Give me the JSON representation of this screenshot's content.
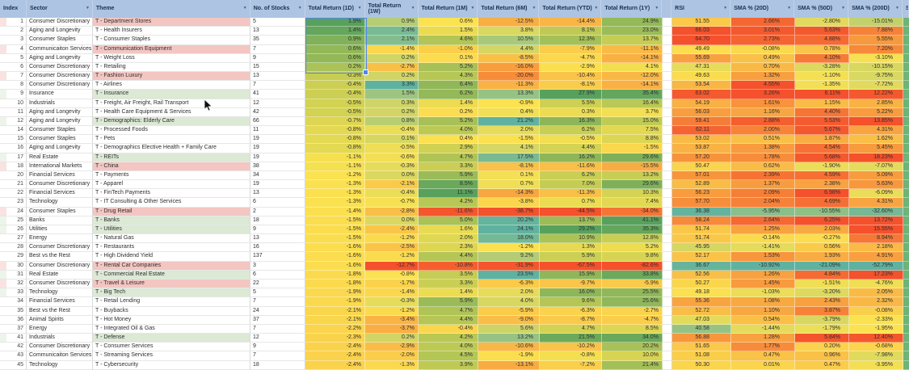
{
  "colors": {
    "header_bg": "#adc4e2",
    "header_text": "#17324f",
    "theme_red": "#f3c6c2",
    "theme_green": "#dce9d5",
    "scale_red": "#f4512c",
    "scale_yellow": "#fbe250",
    "scale_green": "#58a15d",
    "scale_teal": "#5fb2a0",
    "selection_blue": "#4f86ec",
    "sliver_green": "#6eb377"
  },
  "columns": [
    {
      "key": "index",
      "label": "Index",
      "filter": false
    },
    {
      "key": "sector",
      "label": "Sector",
      "filter": true
    },
    {
      "key": "theme",
      "label": "Theme",
      "filter": true
    },
    {
      "key": "stocks",
      "label": "No. of Stocks",
      "filter": true
    },
    {
      "key": "r1d",
      "label": "Total Return (1D)",
      "filter": true
    },
    {
      "key": "r1w",
      "label": "Total Return (1W)",
      "filter": true
    },
    {
      "key": "r1m",
      "label": "Total Return (1M)",
      "filter": true
    },
    {
      "key": "r6m",
      "label": "Total Return (6M)",
      "filter": true
    },
    {
      "key": "rytd",
      "label": "Total Return (YTD)",
      "filter": true
    },
    {
      "key": "r1y",
      "label": "Total Return (1Y)",
      "filter": true
    },
    {
      "key": "gap",
      "label": "",
      "filter": false
    },
    {
      "key": "rsi",
      "label": "RSI",
      "filter": true
    },
    {
      "key": "sma20",
      "label": "SMA % (20D)",
      "filter": true
    },
    {
      "key": "sma50",
      "label": "SMA % (50D)",
      "filter": true
    },
    {
      "key": "sma200",
      "label": "SMA % (200D)",
      "filter": true
    },
    {
      "key": "sliver",
      "label": "S",
      "filter": false
    }
  ],
  "row_fields": [
    "index",
    "sector",
    "theme",
    "theme_highlight",
    "stocks",
    "r1d",
    "r1w",
    "r1m",
    "r6m",
    "rytd",
    "r1y",
    "rsi",
    "sma20",
    "sma50",
    "sma200"
  ],
  "rows": [
    [
      1,
      "Consumer Discretionary",
      "T - Department Stores",
      "red",
      "5",
      "1.9%",
      "0.9%",
      "0.6%",
      "-12.5%",
      "-14.4%",
      "24.9%",
      "51.55",
      "2.66%",
      "-2.80%",
      "-15.01%"
    ],
    [
      2,
      "Aging and Longevity",
      "T - Health Insurers",
      "",
      "13",
      "1.4%",
      "2.4%",
      "1.5%",
      "3.8%",
      "8.1%",
      "23.0%",
      "66.03",
      "3.01%",
      "5.63%",
      "7.88%"
    ],
    [
      3,
      "Consumer Staples",
      "T - Consumer Staples",
      "",
      "35",
      "0.9%",
      "2.1%",
      "4.6%",
      "10.5%",
      "12.3%",
      "13.7%",
      "64.70",
      "2.73%",
      "4.88%",
      "5.55%"
    ],
    [
      4,
      "Communicaiton Services",
      "T - Communication Equipment",
      "red",
      "7",
      "0.6%",
      "-1.4%",
      "-1.0%",
      "4.4%",
      "-7.9%",
      "-11.1%",
      "49.49",
      "-0.08%",
      "0.78%",
      "7.20%"
    ],
    [
      5,
      "Aging and Longevity",
      "T - Weight Loss",
      "",
      "9",
      "0.6%",
      "0.2%",
      "0.1%",
      "-8.5%",
      "-4.7%",
      "-14.1%",
      "55.69",
      "0.49%",
      "4.10%",
      "-3.10%"
    ],
    [
      6,
      "Consumer Discretionary",
      "T - Retailing",
      "",
      "15",
      "0.2%",
      "-2.7%",
      "5.2%",
      "-16.0%",
      "-2.9%",
      "4.1%",
      "47.31",
      "0.70%",
      "-3.28%",
      "-10.15%"
    ],
    [
      7,
      "Consumer Discretionary",
      "T - Fashion Luxury",
      "red",
      "13",
      "-0.3%",
      "0.2%",
      "4.3%",
      "-20.0%",
      "-10.4%",
      "-12.0%",
      "49.63",
      "1.32%",
      "-1.10%",
      "-9.75%"
    ],
    [
      8,
      "Consumer Discretionary",
      "T - Airlines",
      "",
      "7",
      "-0.4%",
      "3.3%",
      "6.4%",
      "-11.3%",
      "-8.1%",
      "-14.1%",
      "53.54",
      "4.55%",
      "-1.35%",
      "-7.72%"
    ],
    [
      9,
      "Insurance",
      "T - Insurance",
      "green",
      "41",
      "-0.4%",
      "1.5%",
      "6.2%",
      "13.3%",
      "27.9%",
      "35.4%",
      "63.02",
      "3.26%",
      "6.11%",
      "12.22%"
    ],
    [
      10,
      "Industrials",
      "T - Freight, Air Freight, Rail Transport",
      "",
      "12",
      "-0.5%",
      "0.3%",
      "1.4%",
      "-0.9%",
      "5.5%",
      "16.4%",
      "54.19",
      "1.61%",
      "1.15%",
      "2.85%"
    ],
    [
      11,
      "Aging and Longevity",
      "T - Health Care Equipment & Services",
      "",
      "42",
      "-0.5%",
      "0.2%",
      "0.2%",
      "0.4%",
      "0.3%",
      "3.7%",
      "56.03",
      "1.16%",
      "4.40%",
      "5.22%"
    ],
    [
      12,
      "Aging and Longevity",
      "T - Demographics: Elderly Care",
      "green",
      "66",
      "-0.7%",
      "0.8%",
      "5.2%",
      "21.2%",
      "16.3%",
      "15.0%",
      "59.41",
      "2.88%",
      "5.53%",
      "13.85%"
    ],
    [
      14,
      "Consumer Staples",
      "T - Processed Foods",
      "",
      "11",
      "-0.8%",
      "-0.4%",
      "4.0%",
      "2.0%",
      "6.2%",
      "7.5%",
      "62.11",
      "2.00%",
      "5.67%",
      "4.31%"
    ],
    [
      15,
      "Consumer Staples",
      "T - Pets",
      "",
      "19",
      "-0.8%",
      "0.1%",
      "0.4%",
      "-1.5%",
      "-0.5%",
      "8.8%",
      "53.02",
      "0.51%",
      "1.87%",
      "1.62%"
    ],
    [
      16,
      "Aging and Longevity",
      "T - Demographics Elective Health + Family Care",
      "",
      "19",
      "-0.8%",
      "-0.5%",
      "2.9%",
      "4.1%",
      "4.4%",
      "-1.5%",
      "53.87",
      "1.38%",
      "4.54%",
      "5.45%"
    ],
    [
      17,
      "Real Estate",
      "T - REITs",
      "green",
      "19",
      "-1.1%",
      "-0.6%",
      "4.7%",
      "17.5%",
      "16.2%",
      "29.6%",
      "57.20",
      "1.78%",
      "5.68%",
      "18.23%"
    ],
    [
      18,
      "International Markets",
      "T - China",
      "red",
      "38",
      "-1.1%",
      "-0.3%",
      "3.3%",
      "-8.1%",
      "-11.6%",
      "-15.5%",
      "50.47",
      "0.62%",
      "-1.90%",
      "-7.07%"
    ],
    [
      20,
      "Financial Services",
      "T - Payments",
      "",
      "34",
      "-1.2%",
      "0.0%",
      "5.9%",
      "0.1%",
      "6.2%",
      "13.2%",
      "57.01",
      "2.39%",
      "4.59%",
      "5.09%"
    ],
    [
      21,
      "Consumer Discretionary",
      "T - Apparel",
      "",
      "19",
      "-1.3%",
      "-2.1%",
      "8.5%",
      "0.7%",
      "7.0%",
      "29.6%",
      "52.89",
      "1.37%",
      "2.38%",
      "5.63%"
    ],
    [
      22,
      "Financial Services",
      "T - FinTech Payments",
      "",
      "13",
      "-1.3%",
      "-0.4%",
      "11.1%",
      "-14.3%",
      "-11.3%",
      "10.3%",
      "56.23",
      "2.09%",
      "6.98%",
      "-6.09%"
    ],
    [
      23,
      "Technology",
      "T - IT Consulting & Other Services",
      "",
      "6",
      "-1.3%",
      "-0.7%",
      "4.2%",
      "-3.8%",
      "0.7%",
      "7.4%",
      "57.70",
      "2.04%",
      "4.69%",
      "4.31%"
    ],
    [
      24,
      "Consumer Staples",
      "T - Drug Retail",
      "red",
      "2",
      "-1.4%",
      "-2.8%",
      "-11.6%",
      "-38.7%",
      "-44.5%",
      "-34.0%",
      "36.38",
      "-5.95%",
      "-10.55%",
      "-32.60%"
    ],
    [
      25,
      "Banks",
      "T - Banks",
      "green",
      "18",
      "-1.5%",
      "0.0%",
      "5.0%",
      "20.2%",
      "13.7%",
      "41.1%",
      "58.24",
      "2.64%",
      "6.25%",
      "13.72%"
    ],
    [
      26,
      "Utilities",
      "T - Utilities",
      "green",
      "9",
      "-1.5%",
      "-2.4%",
      "1.6%",
      "24.1%",
      "29.2%",
      "35.3%",
      "51.74",
      "1.25%",
      "2.03%",
      "15.55%"
    ],
    [
      27,
      "Energy",
      "T - Natural Gas",
      "",
      "13",
      "-1.5%",
      "-1.2%",
      "2.0%",
      "18.0%",
      "10.9%",
      "12.8%",
      "51.74",
      "-0.14%",
      "-0.27%",
      "8.94%"
    ],
    [
      28,
      "Consumer Discretionary",
      "T - Restaurants",
      "",
      "16",
      "-1.6%",
      "-2.5%",
      "2.3%",
      "-1.2%",
      "1.3%",
      "5.2%",
      "45.95",
      "-1.41%",
      "0.56%",
      "2.18%"
    ],
    [
      29,
      "Best vs the Rest",
      "T - High Dividend Yield",
      "",
      "137",
      "-1.6%",
      "-1.2%",
      "4.4%",
      "9.2%",
      "5.9%",
      "9.8%",
      "52.17",
      "1.53%",
      "1.93%",
      "4.91%"
    ],
    [
      30,
      "Consumer Discretionary",
      "T - Rental Car Companies",
      "red",
      "3",
      "-1.6%",
      "-12.7%",
      "-10.8%",
      "-31.9%",
      "-67.5%",
      "-82.6%",
      "36.67",
      "-10.92%",
      "-21.09%",
      "-52.79%"
    ],
    [
      31,
      "Real Estate",
      "T - Commercial Real Estate",
      "green",
      "6",
      "-1.8%",
      "-0.8%",
      "3.5%",
      "23.5%",
      "15.9%",
      "33.8%",
      "52.56",
      "1.26%",
      "4.84%",
      "17.23%"
    ],
    [
      32,
      "Consumer Discretionary",
      "T - Travel & Leisure",
      "red",
      "22",
      "-1.8%",
      "-1.7%",
      "3.3%",
      "-6.3%",
      "-9.7%",
      "-5.9%",
      "50.27",
      "1.45%",
      "-1.51%",
      "-4.76%"
    ],
    [
      33,
      "Technology",
      "T - Big Tech",
      "green",
      "5",
      "-1.9%",
      "-1.4%",
      "1.4%",
      "2.0%",
      "16.0%",
      "25.5%",
      "49.18",
      "-1.03%",
      "-3.20%",
      "2.05%"
    ],
    [
      34,
      "Financial Services",
      "T - Retail Lending",
      "",
      "7",
      "-1.9%",
      "-0.3%",
      "5.9%",
      "4.0%",
      "9.6%",
      "25.6%",
      "55.36",
      "1.08%",
      "2.43%",
      "2.32%"
    ],
    [
      35,
      "Best vs the Rest",
      "T - Buybacks",
      "",
      "24",
      "-2.1%",
      "-1.2%",
      "4.7%",
      "-5.9%",
      "-6.3%",
      "-2.7%",
      "52.72",
      "1.10%",
      "3.87%",
      "-0.08%"
    ],
    [
      36,
      "Animal Spirits",
      "T - Hot Money",
      "",
      "37",
      "-2.1%",
      "-3.4%",
      "4.4%",
      "-9.0%",
      "-8.7%",
      "-4.7%",
      "47.03",
      "0.54%",
      "-3.79%",
      "-2.33%"
    ],
    [
      37,
      "Energy",
      "T - Integrated Oil & Gas",
      "",
      "7",
      "-2.2%",
      "-3.7%",
      "-0.4%",
      "5.6%",
      "4.7%",
      "8.5%",
      "40.58",
      "-1.44%",
      "-1.79%",
      "-1.95%"
    ],
    [
      41,
      "Industrials",
      "T - Defense",
      "green",
      "12",
      "-2.3%",
      "0.2%",
      "4.2%",
      "13.2%",
      "21.5%",
      "34.0%",
      "56.88",
      "1.28%",
      "5.84%",
      "12.40%"
    ],
    [
      42,
      "Consumer Discretionary",
      "T - Consumer Services",
      "",
      "9",
      "-2.4%",
      "-2.9%",
      "4.0%",
      "-10.6%",
      "-10.2%",
      "20.2%",
      "51.65",
      "1.77%",
      "0.20%",
      "-0.68%"
    ],
    [
      43,
      "Communicaiton Services",
      "T - Streaming Services",
      "",
      "7",
      "-2.4%",
      "-2.0%",
      "4.5%",
      "-1.9%",
      "-0.8%",
      "10.0%",
      "51.08",
      "0.47%",
      "0.96%",
      "-7.98%"
    ],
    [
      45,
      "Technology",
      "T - Cybersecurity",
      "",
      "18",
      "-2.4%",
      "-1.3%",
      "3.9%",
      "-13.1%",
      "-7.2%",
      "21.4%",
      "50.30",
      "0.01%",
      "0.47%",
      "-3.95%"
    ]
  ],
  "selection": {
    "column": "r1d",
    "first_row": 1,
    "last_row": 6
  }
}
